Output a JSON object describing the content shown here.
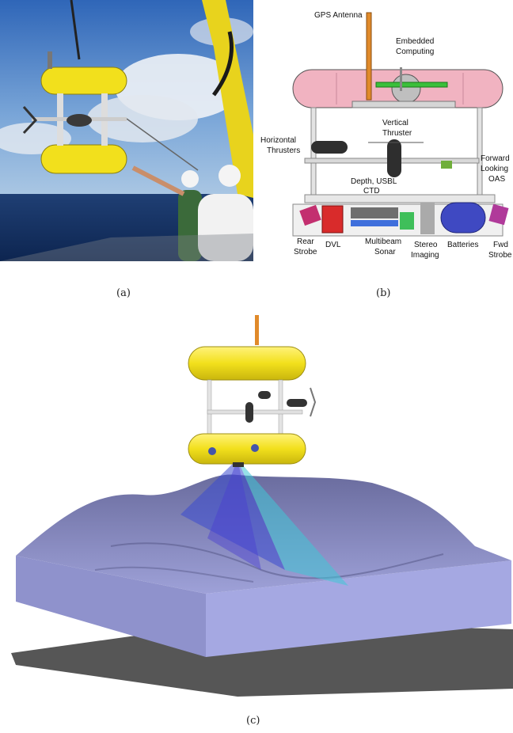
{
  "captions": {
    "a": "(a)",
    "b": "(b)",
    "c": "(c)"
  },
  "diagram_b": {
    "labels": {
      "gps_antenna": "GPS Antenna",
      "embedded_computing_1": "Embedded",
      "embedded_computing_2": "Computing",
      "horizontal_thrusters_1": "Horizontal",
      "horizontal_thrusters_2": "Thrusters",
      "vertical_thruster_1": "Vertical",
      "vertical_thruster_2": "Thruster",
      "forward_looking_oas_1": "Forward",
      "forward_looking_oas_2": "Looking",
      "forward_looking_oas_3": "OAS",
      "depth_usbl_1": "Depth, USBL",
      "depth_usbl_2": "CTD",
      "rear_strobe_1": "Rear",
      "rear_strobe_2": "Strobe",
      "dvl": "DVL",
      "multibeam_sonar_1": "Multibeam",
      "multibeam_sonar_2": "Sonar",
      "stereo_imaging_1": "Stereo",
      "stereo_imaging_2": "Imaging",
      "batteries": "Batteries",
      "fwd_strobe_1": "Fwd",
      "fwd_strobe_2": "Strobe"
    }
  },
  "colors": {
    "auv_yellow": "#f2e01c",
    "float_pink": "#f1b3c1",
    "terrain": "#8c8fc9",
    "sonar_cyan": "#3fc7d6",
    "sonar_blue": "#3b4bd0"
  }
}
